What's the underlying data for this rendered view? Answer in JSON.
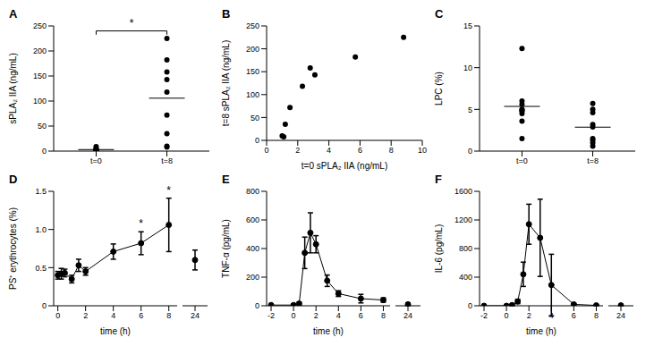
{
  "chart_data": [
    {
      "title": "A",
      "type": "dot_plot",
      "categories": [
        "t=0",
        "t=8"
      ],
      "values": [
        [
          1.0,
          1.1,
          1.2,
          1.5,
          2.3,
          2.8,
          3.1,
          5.7,
          8.8
        ],
        [
          10,
          8,
          35,
          72,
          118,
          158,
          143,
          182,
          225
        ]
      ],
      "ylabel": "sPLA₂ IIA (ng/mL)",
      "ylim": [
        0,
        250
      ],
      "yticks": [
        0,
        50,
        100,
        150,
        200,
        250
      ],
      "color": "#000000",
      "marker": "circle",
      "annotations": [
        {
          "text": "*",
          "between": [
            "t=0",
            "t=8"
          ]
        }
      ]
    },
    {
      "title": "B",
      "type": "scatter",
      "x": [
        1.0,
        1.1,
        1.2,
        1.5,
        2.3,
        2.8,
        3.1,
        5.7,
        8.8
      ],
      "values": [
        10,
        8,
        35,
        72,
        118,
        158,
        143,
        182,
        225
      ],
      "xlabel": "t=0 sPLA₂ IIA (ng/mL)",
      "ylabel": "t=8 sPLA₂ IIA (ng/mL)",
      "xlim": [
        0,
        10
      ],
      "xticks": [
        0,
        2,
        4,
        6,
        8,
        10
      ],
      "ylim": [
        0,
        250
      ],
      "yticks": [
        0,
        50,
        100,
        150,
        200,
        250
      ],
      "color": "#000000",
      "marker": "circle"
    },
    {
      "title": "C",
      "type": "dot_plot",
      "categories": [
        "t=0",
        "t=8"
      ],
      "values": [
        [
          12.3,
          6.0,
          5.6,
          5.0,
          4.9,
          4.8,
          4.5,
          3.6,
          1.5
        ],
        [
          5.7,
          5.0,
          4.6,
          3.2,
          2.9,
          1.5,
          1.3,
          1.0,
          0.6
        ]
      ],
      "ylabel": "LPC (%)",
      "ylim": [
        0,
        15
      ],
      "yticks": [
        0,
        5,
        10,
        15
      ],
      "color": "#000000",
      "marker": "circle"
    },
    {
      "title": "D",
      "type": "line",
      "x": [
        0,
        0.25,
        0.5,
        1,
        1.5,
        2,
        4,
        6,
        8,
        24
      ],
      "values": [
        0.4,
        0.42,
        0.43,
        0.35,
        0.53,
        0.45,
        0.71,
        0.82,
        1.06,
        0.6
      ],
      "errors": [
        0.05,
        0.07,
        0.05,
        0.05,
        0.08,
        0.05,
        0.1,
        0.15,
        0.35,
        0.13
      ],
      "xlabel": "time (h)",
      "ylabel": "PS⁺ erythrocytes (%)",
      "xlim": [
        -0.3,
        24.6
      ],
      "x_break": [
        8.6,
        23.4
      ],
      "xticks": [
        0,
        2,
        4,
        6,
        8,
        24
      ],
      "ylim": [
        0,
        1.5
      ],
      "yticks": [
        0,
        0.5,
        {
          "value": 1,
          "label": "1.0"
        },
        1.5
      ],
      "color": "#000000",
      "marker": "circle",
      "annotations": [
        {
          "x": 6,
          "text": "*"
        },
        {
          "x": 8,
          "text": "*"
        }
      ]
    },
    {
      "title": "E",
      "type": "line",
      "x": [
        -2,
        0,
        0.5,
        1,
        1.5,
        2,
        3,
        4,
        6,
        8,
        24
      ],
      "values": [
        5,
        5,
        15,
        370,
        510,
        430,
        175,
        85,
        50,
        40,
        10
      ],
      "errors": [
        0,
        0,
        10,
        110,
        140,
        60,
        40,
        20,
        30,
        15,
        10
      ],
      "xlabel": "time (h)",
      "ylabel": "TNF-α (pg/mL)",
      "xlim": [
        -2.4,
        24.6
      ],
      "x_break": [
        8.6,
        23.4
      ],
      "xticks": [
        -2,
        0,
        2,
        4,
        6,
        8,
        24
      ],
      "ylim": [
        0,
        800
      ],
      "yticks": [
        0,
        200,
        400,
        600,
        800
      ],
      "color": "#000000",
      "marker": "circle"
    },
    {
      "title": "F",
      "type": "line",
      "x": [
        -2,
        0,
        0.5,
        1,
        1.5,
        2,
        3,
        4,
        6,
        8,
        24
      ],
      "values": [
        0,
        0,
        10,
        60,
        440,
        1140,
        950,
        290,
        20,
        5,
        5
      ],
      "errors": [
        0,
        0,
        10,
        30,
        170,
        280,
        540,
        430,
        10,
        5,
        5
      ],
      "xlabel": "time (h)",
      "ylabel": "IL-6 (pg/mL)",
      "xlim": [
        -2.4,
        24.6
      ],
      "x_break": [
        8.6,
        23.4
      ],
      "xticks": [
        -2,
        0,
        2,
        4,
        6,
        8,
        24
      ],
      "ylim": [
        0,
        1600
      ],
      "yticks": [
        0,
        400,
        800,
        1200,
        1600
      ],
      "color": "#000000",
      "marker": "circle"
    }
  ]
}
